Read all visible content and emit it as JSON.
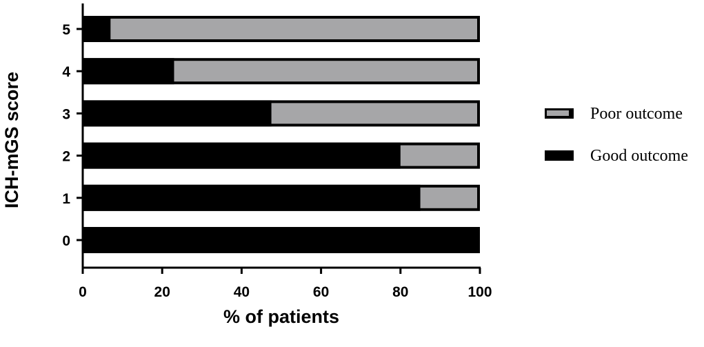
{
  "chart_data": {
    "type": "bar",
    "orientation": "horizontal",
    "stacked": true,
    "categories": [
      "0",
      "1",
      "2",
      "3",
      "4",
      "5"
    ],
    "series": [
      {
        "name": "Good outcome",
        "color": "#000000",
        "values": [
          100,
          85,
          80,
          47.5,
          23,
          7
        ]
      },
      {
        "name": "Poor outcome",
        "color": "#a6a6a8",
        "values": [
          0,
          15,
          20,
          52.5,
          77,
          93
        ]
      }
    ],
    "xlabel": "% of patients",
    "ylabel": "ICH-mGS score",
    "xlim": [
      0,
      100
    ],
    "xticks": [
      "0",
      "20",
      "40",
      "60",
      "80",
      "100"
    ],
    "grid": false,
    "legend_position": "right",
    "legend_order": [
      "Poor outcome",
      "Good outcome"
    ]
  }
}
